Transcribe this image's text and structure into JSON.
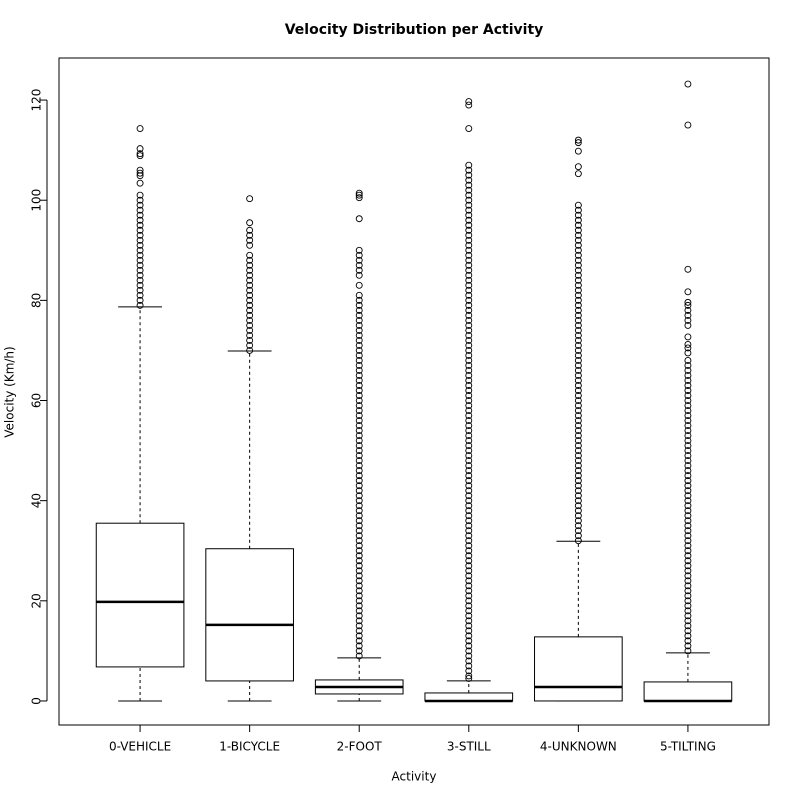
{
  "chart_data": {
    "type": "boxplot",
    "title": "Velocity Distribution per Activity",
    "x_label": "Activity",
    "y_label": "Velocity (Km/h)",
    "categories": [
      "0-VEHICLE",
      "1-BICYCLE",
      "2-FOOT",
      "3-STILL",
      "4-UNKNOWN",
      "5-TILTING"
    ],
    "ylim": [
      -4.8,
      128.4
    ],
    "yticks": [
      0,
      20,
      40,
      60,
      80,
      100,
      120
    ],
    "boxes": [
      {
        "min": 0,
        "q1": 6.8,
        "median": 19.8,
        "q3": 35.5,
        "max": 78.7,
        "outliers": [
          79,
          80,
          81,
          82,
          83,
          84,
          85,
          86,
          87,
          88,
          89,
          90,
          91,
          92,
          93,
          94,
          95,
          96,
          97,
          98,
          99,
          100,
          101,
          103.4,
          104.9,
          105.4,
          106,
          108.9,
          109.3,
          110.3,
          114.3
        ]
      },
      {
        "min": 0,
        "q1": 4.0,
        "median": 15.2,
        "q3": 30.4,
        "max": 69.9,
        "outliers": [
          70,
          71,
          72,
          73,
          74,
          75,
          76,
          77,
          78,
          79,
          80,
          81,
          82,
          83,
          84,
          85,
          86,
          87,
          88,
          89,
          91,
          92,
          93,
          94,
          95.5,
          100.3
        ]
      },
      {
        "min": 0,
        "q1": 1.4,
        "median": 2.8,
        "q3": 4.2,
        "max": 8.6,
        "outliers": [
          9,
          10,
          11,
          12,
          13,
          14,
          15,
          16,
          17,
          18,
          19,
          20,
          21,
          22,
          23,
          24,
          25,
          26,
          27,
          28,
          29,
          30,
          31,
          32,
          33,
          34,
          35,
          36,
          37,
          38,
          39,
          40,
          41,
          42,
          43,
          44,
          45,
          46,
          47,
          48,
          49,
          50,
          51,
          52,
          53,
          54,
          55,
          56,
          57,
          58,
          59,
          60,
          61,
          62,
          63,
          64,
          65,
          66,
          67,
          68,
          69,
          70,
          71,
          72,
          73,
          74,
          75,
          76,
          77,
          78,
          79,
          80,
          81,
          83,
          85,
          86,
          87,
          88,
          89,
          90,
          96.3,
          100.5,
          101,
          101.4
        ]
      },
      {
        "min": 0,
        "q1": 0,
        "median": 0,
        "q3": 1.6,
        "max": 4.0,
        "outliers": [
          4.5,
          5,
          6,
          7,
          8,
          9,
          10,
          11,
          12,
          13,
          14,
          15,
          16,
          17,
          18,
          19,
          20,
          21,
          22,
          23,
          24,
          25,
          26,
          27,
          28,
          29,
          30,
          31,
          32,
          33,
          34,
          35,
          36,
          37,
          38,
          39,
          40,
          41,
          42,
          43,
          44,
          45,
          46,
          47,
          48,
          49,
          50,
          51,
          52,
          53,
          54,
          55,
          56,
          57,
          58,
          59,
          60,
          61,
          62,
          63,
          64,
          65,
          66,
          67,
          68,
          69,
          70,
          71,
          72,
          73,
          74,
          75,
          76,
          77,
          78,
          79,
          80,
          81,
          82,
          83,
          84,
          85,
          86,
          87,
          88,
          89,
          90,
          91,
          92,
          93,
          94,
          95,
          96,
          97,
          98,
          99,
          100,
          101,
          102,
          103,
          104,
          105,
          106,
          107,
          114.3,
          119,
          119.7
        ]
      },
      {
        "min": 0,
        "q1": 0,
        "median": 2.8,
        "q3": 12.8,
        "max": 31.9,
        "outliers": [
          32,
          33,
          34,
          35,
          36,
          37,
          38,
          39,
          40,
          41,
          42,
          43,
          44,
          45,
          46,
          47,
          48,
          49,
          50,
          51,
          52,
          53,
          54,
          55,
          56,
          57,
          58,
          59,
          60,
          61,
          62,
          63,
          64,
          65,
          66,
          67,
          68,
          69,
          70,
          71,
          72,
          73,
          74,
          75,
          76,
          77,
          78,
          79,
          80,
          81,
          82,
          83,
          84,
          85,
          86,
          87,
          88,
          89,
          90,
          91,
          92,
          93,
          94,
          95,
          96,
          97,
          98,
          99,
          105.3,
          106.7,
          109.8,
          111.5,
          112
        ]
      },
      {
        "min": 0,
        "q1": 0,
        "median": 0,
        "q3": 3.8,
        "max": 9.6,
        "outliers": [
          10,
          11,
          12,
          13,
          14,
          15,
          16,
          17,
          18,
          19,
          20,
          21,
          22,
          23,
          24,
          25,
          26,
          27,
          28,
          29,
          30,
          31,
          32,
          33,
          34,
          35,
          36,
          37,
          38,
          39,
          40,
          41,
          42,
          43,
          44,
          45,
          46,
          47,
          48,
          49,
          50,
          51,
          52,
          53,
          54,
          55,
          56,
          57,
          58,
          59,
          60,
          61,
          62,
          63,
          64,
          65,
          66,
          67,
          68,
          69.5,
          70.5,
          71.2,
          72.7,
          75,
          76,
          77,
          78,
          79,
          79.6,
          81.7,
          86.2,
          115,
          123.2
        ]
      }
    ]
  }
}
